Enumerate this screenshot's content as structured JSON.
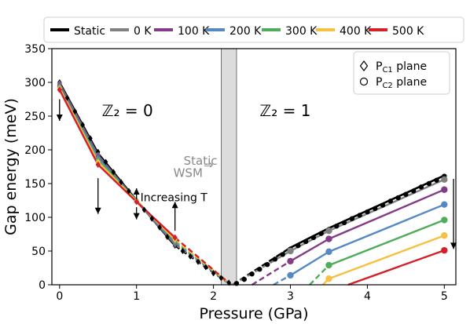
{
  "chart_data": {
    "type": "line",
    "xlabel": "Pressure (GPa)",
    "ylabel": "Gap energy (meV)",
    "xlim": [
      -0.1,
      5.15
    ],
    "ylim": [
      0,
      350
    ],
    "xticks": [
      "0",
      "1",
      "2",
      "3",
      "4",
      "5"
    ],
    "yticks": [
      "0",
      "50",
      "100",
      "150",
      "200",
      "250",
      "300",
      "350"
    ],
    "grid": false,
    "legend_position": "top",
    "series": [
      {
        "name": "Static",
        "color": "#000000",
        "left_solid": [
          [
            0,
            300
          ],
          [
            0.5,
            195
          ],
          [
            1,
            125
          ],
          [
            1.5,
            58
          ]
        ],
        "left_dashed": [
          [
            1.5,
            58
          ],
          [
            2.23,
            0
          ]
        ],
        "right_dashed": [
          [
            2.25,
            0
          ],
          [
            3.0,
            55
          ]
        ],
        "right_solid": [
          [
            3.0,
            55
          ],
          [
            3.5,
            84
          ],
          [
            5.0,
            162
          ]
        ]
      },
      {
        "name": "0 K",
        "color": "#808080",
        "left_solid": [
          [
            0,
            298
          ],
          [
            0.5,
            192
          ],
          [
            1,
            124
          ],
          [
            1.5,
            60
          ]
        ],
        "left_dashed": [
          [
            1.5,
            60
          ],
          [
            2.23,
            0
          ]
        ],
        "right_dashed": [
          [
            2.25,
            0
          ],
          [
            3.0,
            50
          ]
        ],
        "right_solid": [
          [
            3.0,
            50
          ],
          [
            3.5,
            80
          ],
          [
            5.0,
            156
          ]
        ]
      },
      {
        "name": "100 K",
        "color": "#843b86",
        "left_solid": [
          [
            0,
            296
          ],
          [
            0.5,
            190
          ],
          [
            1,
            124
          ],
          [
            1.5,
            62
          ]
        ],
        "left_dashed": [
          [
            1.5,
            62
          ],
          [
            2.23,
            0
          ]
        ],
        "right_dashed": [
          [
            2.5,
            0
          ],
          [
            3.0,
            35
          ]
        ],
        "right_solid": [
          [
            3.0,
            35
          ],
          [
            3.5,
            68
          ],
          [
            5.0,
            141
          ]
        ]
      },
      {
        "name": "200 K",
        "color": "#5489c4",
        "left_solid": [
          [
            0,
            294
          ],
          [
            0.5,
            188
          ],
          [
            1,
            124
          ],
          [
            1.5,
            63
          ]
        ],
        "left_dashed": [
          [
            1.5,
            63
          ],
          [
            2.23,
            0
          ]
        ],
        "right_dashed": [
          [
            2.78,
            0
          ],
          [
            3.0,
            14
          ]
        ],
        "right_solid": [
          [
            3.0,
            14
          ],
          [
            3.5,
            49
          ],
          [
            5.0,
            119
          ]
        ]
      },
      {
        "name": "300 K",
        "color": "#4eac5b",
        "left_solid": [
          [
            0,
            293
          ],
          [
            0.5,
            185
          ],
          [
            1,
            125
          ],
          [
            1.5,
            65
          ]
        ],
        "left_dashed": [
          [
            1.5,
            65
          ],
          [
            2.23,
            0
          ]
        ],
        "right_dashed": [
          [
            3.25,
            0
          ],
          [
            3.5,
            29
          ]
        ],
        "right_solid": [
          [
            3.5,
            29
          ],
          [
            5.0,
            96
          ]
        ]
      },
      {
        "name": "400 K",
        "color": "#f6c142",
        "left_solid": [
          [
            0,
            291
          ],
          [
            0.5,
            182
          ],
          [
            1,
            124
          ],
          [
            1.5,
            67
          ]
        ],
        "left_dashed": [
          [
            1.5,
            67
          ],
          [
            2.23,
            0
          ]
        ],
        "right_dashed": [
          [
            3.42,
            0
          ],
          [
            3.5,
            9
          ]
        ],
        "right_solid": [
          [
            3.5,
            9
          ],
          [
            5.0,
            73
          ]
        ]
      },
      {
        "name": "500 K",
        "color": "#d3202a",
        "left_solid": [
          [
            0,
            289
          ],
          [
            0.5,
            178
          ],
          [
            1,
            123
          ],
          [
            1.5,
            70
          ]
        ],
        "left_dashed": [
          [
            1.5,
            70
          ],
          [
            2.23,
            0
          ]
        ],
        "right_dashed": [],
        "right_solid": [
          [
            3.75,
            0
          ],
          [
            5.0,
            51
          ]
        ]
      }
    ],
    "static_diamonds": [
      [
        0,
        300
      ],
      [
        0.1,
        277
      ],
      [
        0.2,
        257
      ],
      [
        0.3,
        237
      ],
      [
        0.4,
        217
      ],
      [
        0.5,
        197
      ],
      [
        0.6,
        182
      ],
      [
        0.7,
        167
      ],
      [
        0.8,
        152
      ],
      [
        0.9,
        139
      ],
      [
        1.0,
        125
      ],
      [
        1.1,
        111
      ],
      [
        1.2,
        98
      ],
      [
        1.3,
        85
      ],
      [
        1.4,
        71
      ],
      [
        1.5,
        58
      ],
      [
        1.6,
        50
      ],
      [
        1.7,
        42
      ],
      [
        1.8,
        34
      ],
      [
        1.9,
        26
      ],
      [
        2.0,
        17
      ],
      [
        2.1,
        10
      ],
      [
        2.2,
        3
      ]
    ],
    "static_circles": [
      [
        2.3,
        2
      ],
      [
        2.4,
        8
      ],
      [
        2.5,
        16
      ],
      [
        2.6,
        23
      ],
      [
        2.7,
        30
      ],
      [
        2.8,
        38
      ],
      [
        2.9,
        45
      ],
      [
        3.0,
        53
      ],
      [
        3.1,
        58
      ],
      [
        3.2,
        64
      ],
      [
        3.3,
        70
      ],
      [
        3.4,
        76
      ],
      [
        3.5,
        82
      ],
      [
        3.6,
        87
      ],
      [
        3.7,
        92
      ],
      [
        3.8,
        98
      ],
      [
        3.9,
        103
      ],
      [
        4.0,
        108
      ],
      [
        4.1,
        113
      ],
      [
        4.2,
        118
      ],
      [
        4.3,
        124
      ],
      [
        4.4,
        129
      ],
      [
        4.5,
        134
      ],
      [
        4.6,
        139
      ],
      [
        4.7,
        145
      ],
      [
        4.8,
        150
      ],
      [
        4.9,
        155
      ],
      [
        5.0,
        161
      ]
    ],
    "wsm_band": [
      2.1,
      2.3
    ],
    "labels": {
      "z2_zero": "ℤ₂ = 0",
      "z2_one": "ℤ₂ = 1",
      "static_wsm_line1": "Static",
      "static_wsm_line2": "WSM",
      "wsm_arrow": "⇒",
      "increasing_t": "Increasing T"
    },
    "marker_legend": [
      {
        "label_main": "P",
        "label_sub": "C1",
        "label_rest": " plane",
        "marker": "diamond"
      },
      {
        "label_main": "P",
        "label_sub": "C2",
        "label_rest": " plane",
        "marker": "circle"
      }
    ]
  }
}
